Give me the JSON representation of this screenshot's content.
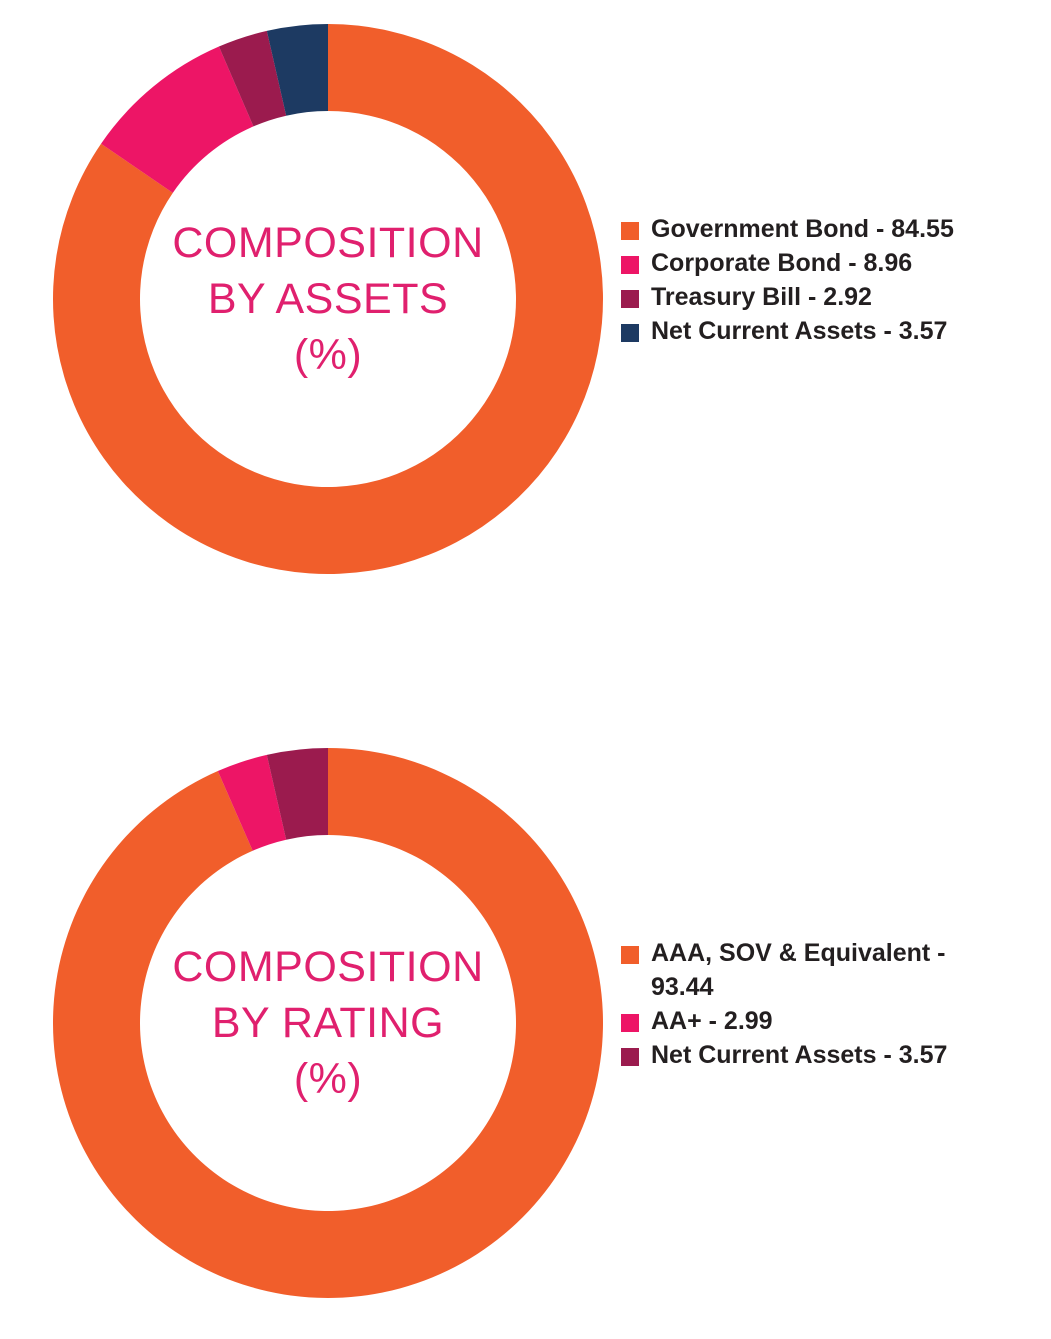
{
  "chart_data": [
    {
      "type": "pie",
      "title": "COMPOSITION BY ASSETS (%)",
      "title_lines": [
        "COMPOSITION",
        "BY ASSETS",
        "(%)"
      ],
      "donut": true,
      "legend_position": "right",
      "slices": [
        {
          "label": "Government Bond",
          "value": 84.55,
          "legend_text": "Government Bond - 84.55",
          "color": "#f15e2b"
        },
        {
          "label": "Corporate Bond",
          "value": 8.96,
          "legend_text": "Corporate Bond - 8.96",
          "color": "#ed1566"
        },
        {
          "label": "Treasury Bill",
          "value": 2.92,
          "legend_text": "Treasury Bill - 2.92",
          "color": "#9b1b4e"
        },
        {
          "label": "Net Current Assets",
          "value": 3.57,
          "legend_text": "Net Current Assets - 3.57",
          "color": "#1d3a62"
        }
      ]
    },
    {
      "type": "pie",
      "title": "COMPOSITION BY RATING (%)",
      "title_lines": [
        "COMPOSITION",
        "BY RATING",
        "(%)"
      ],
      "donut": true,
      "legend_position": "right",
      "slices": [
        {
          "label": "AAA, SOV & Equivalent",
          "value": 93.44,
          "legend_text": "AAA, SOV & Equivalent - 93.44",
          "color": "#f15e2b"
        },
        {
          "label": "AA+",
          "value": 2.99,
          "legend_text": "AA+ - 2.99",
          "color": "#ed1566"
        },
        {
          "label": "Net Current Assets",
          "value": 3.57,
          "legend_text": "Net Current Assets - 3.57",
          "color": "#9b1b4e"
        }
      ]
    }
  ]
}
